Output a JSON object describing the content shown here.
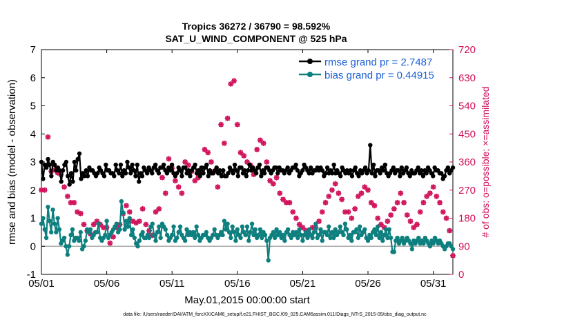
{
  "chart_data": {
    "type": "line",
    "title_line1": "Tropics 36272 / 36790 = 98.592%",
    "title_line2": "SAT_U_WIND_COMPONENT @ 525 hPa",
    "xlabel": "May.01,2015 00:00:00 start",
    "ylabel_left": "rmse and bias (model - observation)",
    "ylabel_right": "# of obs: o=possible; ×=assimilated",
    "footer": "data file: /Users/raeder/DAI/ATM_forcXX/CAM6_setup/f.e21.FHIST_BGC.f09_025.CAM6assim.011/Diags_NTrS_2015-05/obs_diag_output.nc",
    "x_ticks": [
      "05/01",
      "05/06",
      "05/11",
      "05/16",
      "05/21",
      "05/26",
      "05/31"
    ],
    "x_tick_days": [
      0,
      5,
      10,
      15,
      20,
      25,
      30
    ],
    "xlim": [
      0,
      31.5
    ],
    "ylim_left": [
      -1,
      7
    ],
    "y_ticks_left": [
      "-1",
      "0",
      "1",
      "2",
      "3",
      "4",
      "5",
      "6",
      "7"
    ],
    "ylim_right": [
      0,
      720
    ],
    "y_ticks_right": [
      "0",
      "90",
      "180",
      "270",
      "360",
      "450",
      "540",
      "630",
      "720"
    ],
    "legend": {
      "rmse": "rmse grand pr = 2.7487",
      "bias": "bias grand pr = 0.44915"
    },
    "colors": {
      "rmse": "#000000",
      "bias": "#0e7f7f",
      "obs": "#d0105a",
      "zero_line": "#aaaaaa",
      "legend_text": "#1a5fd6"
    },
    "series": [
      {
        "name": "rmse",
        "values": [
          3.0,
          2.4,
          2.9,
          2.8,
          3.1,
          2.9,
          2.5,
          3.0,
          2.9,
          2.7,
          2.8,
          2.7,
          2.3,
          2.7,
          2.9,
          3.0,
          2.5,
          2.2,
          2.6,
          2.3,
          3.0,
          2.7,
          3.1,
          3.3,
          2.4,
          2.6,
          2.5,
          2.7,
          2.5,
          2.8,
          2.7,
          2.7,
          2.6,
          2.5,
          2.6,
          2.8,
          2.7,
          2.6,
          2.5,
          2.9,
          2.7,
          2.7,
          2.6,
          2.6,
          2.5,
          2.9,
          2.7,
          2.6,
          2.9,
          2.5,
          2.7,
          2.6,
          3.0,
          2.8,
          2.6,
          2.9,
          2.7,
          2.5,
          2.9,
          2.3,
          2.6,
          2.5,
          2.8,
          2.7,
          2.6,
          2.8,
          2.7,
          2.6,
          2.8,
          2.9,
          2.7,
          2.6,
          2.8,
          2.8,
          2.9,
          2.7,
          2.6,
          2.8,
          2.7,
          2.9,
          2.6,
          2.5,
          2.6,
          2.8,
          2.7,
          2.5,
          2.8,
          2.8,
          2.6,
          2.7,
          2.5,
          2.7,
          2.8,
          2.9,
          2.6,
          2.7,
          2.5,
          2.8,
          2.6,
          2.8,
          2.9,
          2.5,
          2.7,
          2.6,
          2.6,
          2.7,
          2.8,
          2.6,
          2.7,
          2.5,
          2.7,
          2.5,
          2.5,
          2.6,
          2.8,
          2.7,
          2.6,
          2.9,
          2.7,
          2.5,
          2.8,
          2.8,
          2.6,
          2.7,
          2.5,
          2.7,
          2.9,
          2.7,
          2.8,
          2.7,
          2.6,
          2.8,
          2.9,
          2.5,
          2.7,
          2.6,
          2.8,
          2.8,
          2.7,
          2.6,
          2.7,
          2.8,
          2.8,
          2.6,
          2.8,
          2.7,
          2.7,
          2.6,
          2.7,
          2.8,
          2.6,
          2.7,
          2.8,
          2.8,
          2.9,
          2.7,
          2.5,
          2.6,
          2.7,
          2.9,
          2.8,
          2.7,
          2.6,
          2.8,
          2.6,
          2.7,
          2.7,
          2.8,
          2.7,
          2.8,
          2.7,
          2.5,
          2.6,
          2.8,
          2.6,
          2.7,
          2.6,
          2.9,
          2.6,
          2.7,
          2.6,
          2.5,
          2.8,
          2.7,
          2.6,
          2.7,
          2.6,
          2.7,
          2.5,
          2.7,
          2.8,
          2.6,
          2.5,
          2.7,
          2.6,
          2.7,
          2.8,
          2.6,
          2.7,
          3.6,
          2.6,
          2.9,
          2.5,
          2.7,
          2.7,
          2.6,
          2.8,
          2.7,
          2.9,
          2.6,
          2.5,
          2.6,
          2.7,
          2.8,
          2.6,
          2.7,
          2.7,
          2.5,
          2.8,
          2.6,
          2.7,
          2.8,
          2.6,
          2.5,
          2.7,
          2.6,
          2.6,
          2.7,
          2.8,
          2.6,
          2.7,
          2.5,
          2.7,
          2.6,
          2.8,
          2.7,
          2.6,
          2.5,
          2.8,
          2.7,
          2.7,
          2.6,
          2.6,
          2.4,
          2.5,
          2.7,
          2.8,
          2.6,
          2.7,
          2.8
        ]
      },
      {
        "name": "bias",
        "values": [
          0.8,
          1.0,
          0.6,
          0.3,
          1.4,
          0.9,
          0.5,
          1.3,
          0.8,
          0.5,
          1.0,
          0.6,
          0.1,
          0.2,
          0.3,
          0.0,
          -0.3,
          0.0,
          0.4,
          0.6,
          0.2,
          0.3,
          0.3,
          0.2,
          0.5,
          -0.1,
          0.0,
          0.2,
          0.6,
          0.5,
          0.6,
          0.3,
          0.4,
          0.5,
          0.5,
          0.8,
          0.3,
          0.2,
          0.3,
          0.4,
          0.9,
          0.3,
          0.4,
          0.5,
          0.6,
          0.7,
          0.8,
          0.5,
          0.6,
          1.6,
          1.2,
          0.6,
          0.9,
          0.7,
          1.0,
          0.4,
          0.6,
          0.3,
          0.1,
          0.0,
          0.2,
          0.4,
          0.5,
          0.3,
          0.3,
          0.4,
          0.3,
          0.7,
          0.8,
          0.4,
          0.2,
          0.5,
          0.7,
          0.3,
          0.8,
          0.7,
          0.6,
          0.4,
          0.2,
          0.3,
          0.4,
          0.7,
          0.2,
          0.3,
          0.5,
          0.7,
          0.4,
          0.3,
          0.2,
          0.6,
          0.4,
          0.5,
          0.4,
          0.5,
          0.3,
          0.7,
          0.4,
          0.2,
          0.3,
          0.4,
          0.4,
          0.5,
          0.3,
          0.2,
          0.3,
          0.4,
          0.6,
          0.4,
          0.3,
          0.4,
          0.5,
          0.4,
          0.9,
          0.6,
          0.8,
          0.5,
          0.3,
          0.7,
          0.5,
          0.2,
          0.6,
          0.4,
          0.3,
          0.7,
          0.5,
          0.4,
          0.7,
          0.2,
          0.5,
          0.8,
          0.4,
          0.6,
          0.3,
          0.4,
          0.6,
          0.3,
          0.5,
          0.4,
          0.2,
          -0.5,
          0.3,
          0.4,
          0.5,
          0.3,
          0.6,
          0.4,
          0.5,
          0.3,
          0.4,
          0.2,
          0.5,
          0.6,
          0.4,
          0.3,
          0.5,
          0.4,
          0.5,
          0.3,
          0.6,
          0.4,
          0.2,
          0.4,
          0.5,
          0.3,
          0.6,
          0.4,
          0.3,
          0.5,
          0.8,
          0.3,
          0.4,
          0.6,
          0.2,
          0.5,
          0.5,
          0.4,
          0.7,
          0.3,
          0.5,
          0.3,
          0.6,
          0.4,
          0.5,
          0.7,
          0.5,
          0.4,
          0.8,
          0.6,
          0.3,
          0.4,
          0.2,
          0.5,
          0.5,
          0.6,
          0.3,
          0.7,
          0.4,
          0.5,
          0.6,
          0.3,
          0.2,
          0.4,
          0.3,
          0.5,
          0.6,
          0.4,
          0.7,
          0.3,
          0.5,
          0.2,
          0.4,
          0.6,
          0.3,
          0.6,
          0.3,
          -0.2,
          -0.2,
          0.2,
          0.3,
          0.1,
          0.2,
          0.3,
          0.1,
          0.2,
          0.3,
          0.2,
          0.1,
          -0.1,
          0.2,
          0.1,
          0.2,
          0.3,
          0.1,
          0.2,
          0.1,
          0.3,
          0.2,
          0.1,
          0.0,
          0.2,
          0.1,
          0.3,
          0.2,
          0.1,
          0.2,
          0.1,
          0.0,
          -0.1,
          0.0,
          0.1,
          0.1,
          0.0,
          -0.1
        ]
      }
    ],
    "obs_possible": [
      [
        0,
        270
      ],
      [
        0.25,
        270
      ],
      [
        0.5,
        440
      ],
      [
        0.75,
        330
      ],
      [
        1,
        335
      ],
      [
        1.25,
        325
      ],
      [
        1.5,
        320
      ],
      [
        1.75,
        280
      ],
      [
        2,
        250
      ],
      [
        2.25,
        230
      ],
      [
        2.5,
        230
      ],
      [
        2.75,
        200
      ],
      [
        3,
        195
      ],
      [
        3.25,
        160
      ],
      [
        3.5,
        140
      ],
      [
        3.75,
        130
      ],
      [
        4,
        160
      ],
      [
        4.25,
        170
      ],
      [
        4.5,
        160
      ],
      [
        4.75,
        150
      ],
      [
        5,
        150
      ],
      [
        5.25,
        100
      ],
      [
        5.5,
        120
      ],
      [
        5.75,
        150
      ],
      [
        6,
        160
      ],
      [
        6.25,
        195
      ],
      [
        6.5,
        220
      ],
      [
        6.75,
        200
      ],
      [
        7,
        170
      ],
      [
        7.25,
        165
      ],
      [
        7.5,
        170
      ],
      [
        7.75,
        210
      ],
      [
        8,
        160
      ],
      [
        8.25,
        140
      ],
      [
        8.5,
        125
      ],
      [
        8.75,
        200
      ],
      [
        9,
        210
      ],
      [
        9.25,
        310
      ],
      [
        9.5,
        260
      ],
      [
        9.75,
        370
      ],
      [
        10,
        340
      ],
      [
        10.25,
        300
      ],
      [
        10.5,
        280
      ],
      [
        10.75,
        260
      ],
      [
        11,
        360
      ],
      [
        11.25,
        350
      ],
      [
        11.5,
        330
      ],
      [
        11.75,
        300
      ],
      [
        12,
        310
      ],
      [
        12.25,
        340
      ],
      [
        12.5,
        400
      ],
      [
        12.75,
        390
      ],
      [
        13,
        360
      ],
      [
        13.25,
        330
      ],
      [
        13.5,
        280
      ],
      [
        13.75,
        480
      ],
      [
        14,
        420
      ],
      [
        14.25,
        500
      ],
      [
        14.5,
        610
      ],
      [
        14.75,
        620
      ],
      [
        15,
        480
      ],
      [
        15.25,
        390
      ],
      [
        15.5,
        380
      ],
      [
        15.75,
        360
      ],
      [
        16,
        350
      ],
      [
        16.25,
        320
      ],
      [
        16.5,
        400
      ],
      [
        16.75,
        430
      ],
      [
        17,
        420
      ],
      [
        17.25,
        360
      ],
      [
        17.5,
        300
      ],
      [
        17.75,
        290
      ],
      [
        18,
        310
      ],
      [
        18.25,
        260
      ],
      [
        18.5,
        240
      ],
      [
        18.75,
        230
      ],
      [
        19,
        230
      ],
      [
        19.25,
        200
      ],
      [
        19.5,
        180
      ],
      [
        19.75,
        160
      ],
      [
        20,
        150
      ],
      [
        20.25,
        140
      ],
      [
        20.5,
        130
      ],
      [
        20.75,
        150
      ],
      [
        21,
        150
      ],
      [
        21.25,
        170
      ],
      [
        21.5,
        200
      ],
      [
        21.75,
        230
      ],
      [
        22,
        250
      ],
      [
        22.25,
        270
      ],
      [
        22.5,
        290
      ],
      [
        22.75,
        260
      ],
      [
        23,
        240
      ],
      [
        23.25,
        200
      ],
      [
        23.5,
        200
      ],
      [
        23.75,
        180
      ],
      [
        24,
        210
      ],
      [
        24.25,
        250
      ],
      [
        24.5,
        260
      ],
      [
        24.75,
        280
      ],
      [
        25,
        270
      ],
      [
        25.25,
        230
      ],
      [
        25.5,
        220
      ],
      [
        25.75,
        180
      ],
      [
        26,
        160
      ],
      [
        26.25,
        150
      ],
      [
        26.5,
        170
      ],
      [
        26.75,
        190
      ],
      [
        27,
        210
      ],
      [
        27.25,
        230
      ],
      [
        27.5,
        260
      ],
      [
        27.75,
        230
      ],
      [
        28,
        190
      ],
      [
        28.25,
        170
      ],
      [
        28.5,
        150
      ],
      [
        28.75,
        160
      ],
      [
        29,
        200
      ],
      [
        29.25,
        230
      ],
      [
        29.5,
        250
      ],
      [
        29.75,
        260
      ],
      [
        30,
        280
      ],
      [
        30.25,
        250
      ],
      [
        30.5,
        230
      ],
      [
        30.75,
        200
      ],
      [
        31,
        180
      ],
      [
        31.25,
        140
      ],
      [
        31.5,
        60
      ]
    ]
  }
}
